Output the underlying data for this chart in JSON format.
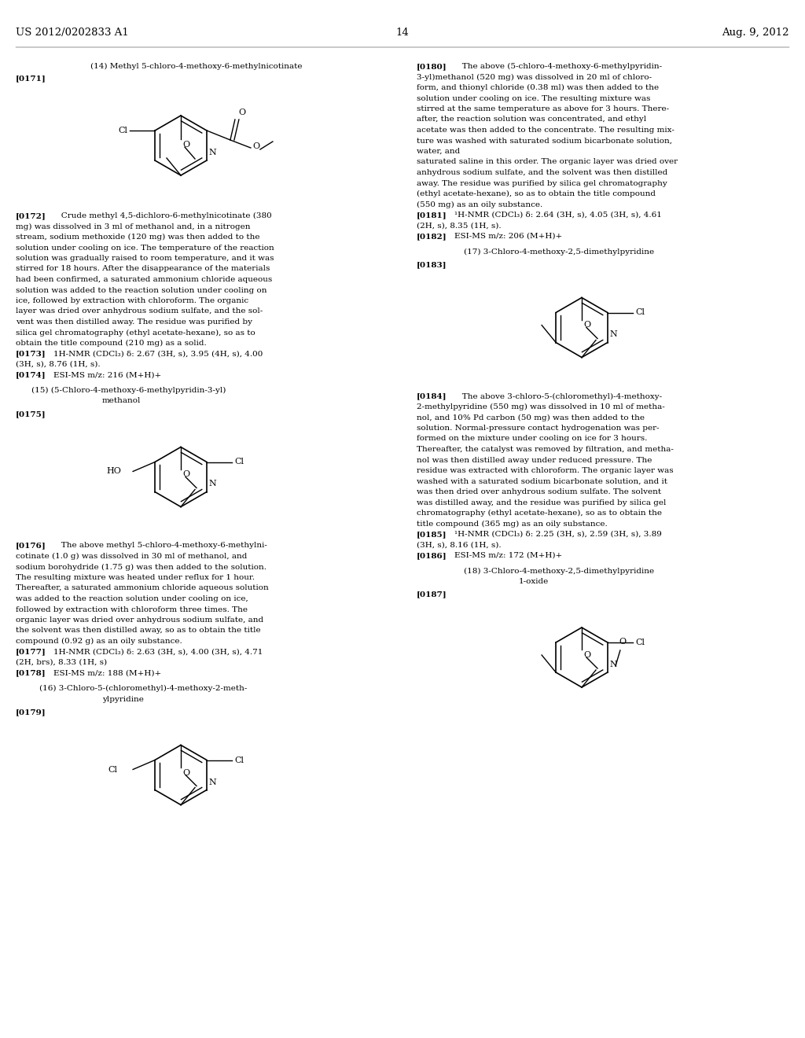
{
  "page_header_left": "US 2012/0202833 A1",
  "page_header_center": "14",
  "page_header_right": "Aug. 9, 2012",
  "background_color": "#ffffff",
  "text_color": "#000000",
  "font_size_body": 7.5,
  "font_size_header": 9.5,
  "figw": 10.24,
  "figh": 13.2,
  "dpi": 100
}
